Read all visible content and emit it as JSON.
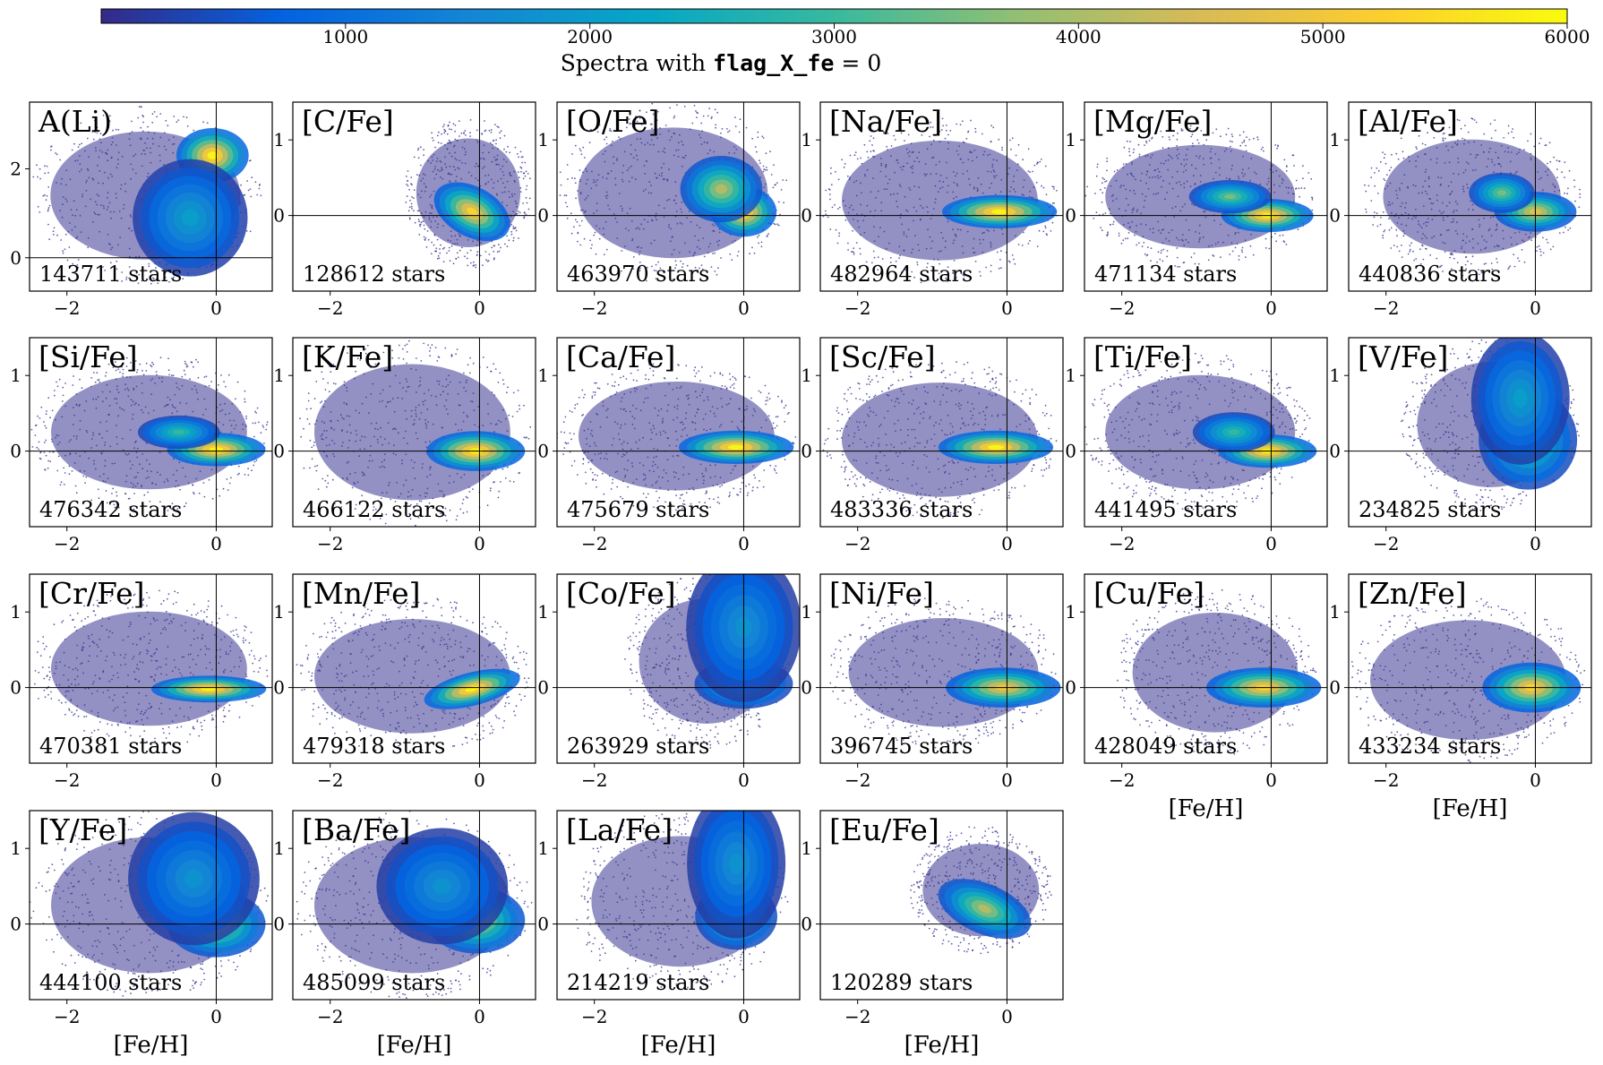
{
  "colors": {
    "colormap": [
      "#352a87",
      "#0363e1",
      "#1485d4",
      "#06a7c6",
      "#38b99e",
      "#92bf73",
      "#d9ba56",
      "#fcce2e",
      "#f9fb0e"
    ],
    "low_density": "#3b3691",
    "axes": "#000000",
    "label_box": "rgba(255,255,255,0.75)"
  },
  "chart_data": {
    "type": "heatmap",
    "colorbar": {
      "ticks": [
        "1000",
        "2000",
        "3000",
        "4000",
        "5000",
        "6000"
      ],
      "tick_values": [
        1000,
        2000,
        3000,
        4000,
        5000,
        6000
      ],
      "range": [
        0,
        6000
      ],
      "title_prefix": "Spectra with ",
      "title_code": "flag_X_fe",
      "title_suffix": " = 0"
    },
    "xlabel": "[Fe/H]",
    "xlim": [
      -2.5,
      0.75
    ],
    "xticks": [
      -2,
      0
    ],
    "xtick_labels": [
      "−2",
      "0"
    ],
    "panels": [
      {
        "label": "A(Li)",
        "count": "143711 stars",
        "ylim": [
          -0.75,
          3.5
        ],
        "yticks": [
          0,
          2
        ],
        "ytick_labels": [
          "0",
          "2"
        ],
        "blobs": [
          {
            "x": -0.05,
            "y": 2.3,
            "sx": 0.22,
            "sy": 0.28,
            "a": 1.0
          },
          {
            "x": -0.35,
            "y": 0.9,
            "sx": 0.35,
            "sy": 0.6,
            "a": 0.35
          }
        ],
        "envelope": {
          "x": [
            -2.5,
            0.6
          ],
          "y": [
            -0.6,
            3.4
          ]
        }
      },
      {
        "label": "[C/Fe]",
        "count": "128612 stars",
        "ylim": [
          -1,
          1.5
        ],
        "yticks": [
          0,
          1
        ],
        "ytick_labels": [
          "0",
          "1"
        ],
        "blobs": [
          {
            "x": -0.1,
            "y": 0.05,
            "sx": 0.25,
            "sy": 0.15,
            "a": 0.9,
            "rot": -0.5
          }
        ],
        "envelope": {
          "x": [
            -1.0,
            0.7
          ],
          "y": [
            -0.7,
            1.3
          ]
        }
      },
      {
        "label": "[O/Fe]",
        "count": "463970 stars",
        "ylim": [
          -1,
          1.5
        ],
        "yticks": [
          0,
          1
        ],
        "ytick_labels": [
          "0",
          "1"
        ],
        "blobs": [
          {
            "x": 0.0,
            "y": 0.05,
            "sx": 0.2,
            "sy": 0.15,
            "a": 1.0
          },
          {
            "x": -0.3,
            "y": 0.35,
            "sx": 0.25,
            "sy": 0.2,
            "a": 0.7
          }
        ],
        "envelope": {
          "x": [
            -2.5,
            0.6
          ],
          "y": [
            -0.9,
            1.5
          ]
        }
      },
      {
        "label": "[Na/Fe]",
        "count": "482964 stars",
        "ylim": [
          -1,
          1.5
        ],
        "yticks": [
          0,
          1
        ],
        "ytick_labels": [
          "0",
          "1"
        ],
        "blobs": [
          {
            "x": -0.1,
            "y": 0.05,
            "sx": 0.35,
            "sy": 0.1,
            "a": 1.0
          }
        ],
        "envelope": {
          "x": [
            -2.5,
            0.7
          ],
          "y": [
            -0.9,
            1.3
          ]
        }
      },
      {
        "label": "[Mg/Fe]",
        "count": "471134 stars",
        "ylim": [
          -1,
          1.5
        ],
        "yticks": [
          0,
          1
        ],
        "ytick_labels": [
          "0",
          "1"
        ],
        "blobs": [
          {
            "x": -0.05,
            "y": 0.0,
            "sx": 0.28,
            "sy": 0.1,
            "a": 1.0
          },
          {
            "x": -0.55,
            "y": 0.25,
            "sx": 0.25,
            "sy": 0.1,
            "a": 0.6
          }
        ],
        "envelope": {
          "x": [
            -2.5,
            0.6
          ],
          "y": [
            -0.7,
            1.2
          ]
        }
      },
      {
        "label": "[Al/Fe]",
        "count": "440836 stars",
        "ylim": [
          -1,
          1.5
        ],
        "yticks": [
          0,
          1
        ],
        "ytick_labels": [
          "0",
          "1"
        ],
        "blobs": [
          {
            "x": 0.0,
            "y": 0.05,
            "sx": 0.25,
            "sy": 0.12,
            "a": 0.8
          },
          {
            "x": -0.45,
            "y": 0.3,
            "sx": 0.2,
            "sy": 0.12,
            "a": 0.6
          }
        ],
        "envelope": {
          "x": [
            -2.3,
            0.6
          ],
          "y": [
            -0.8,
            1.3
          ]
        }
      },
      {
        "label": "[Si/Fe]",
        "count": "476342 stars",
        "ylim": [
          -1,
          1.5
        ],
        "yticks": [
          0,
          1
        ],
        "ytick_labels": [
          "0",
          "1"
        ],
        "blobs": [
          {
            "x": 0.0,
            "y": 0.02,
            "sx": 0.3,
            "sy": 0.1,
            "a": 1.0
          },
          {
            "x": -0.5,
            "y": 0.25,
            "sx": 0.25,
            "sy": 0.1,
            "a": 0.5
          }
        ],
        "envelope": {
          "x": [
            -2.5,
            0.7
          ],
          "y": [
            -0.8,
            1.3
          ]
        }
      },
      {
        "label": "[K/Fe]",
        "count": "466122 stars",
        "ylim": [
          -1,
          1.5
        ],
        "yticks": [
          0,
          1
        ],
        "ytick_labels": [
          "0",
          "1"
        ],
        "blobs": [
          {
            "x": -0.05,
            "y": 0.0,
            "sx": 0.3,
            "sy": 0.12,
            "a": 1.0
          }
        ],
        "envelope": {
          "x": [
            -2.5,
            0.7
          ],
          "y": [
            -1.0,
            1.5
          ]
        }
      },
      {
        "label": "[Ca/Fe]",
        "count": "475679 stars",
        "ylim": [
          -1,
          1.5
        ],
        "yticks": [
          0,
          1
        ],
        "ytick_labels": [
          "0",
          "1"
        ],
        "blobs": [
          {
            "x": -0.1,
            "y": 0.05,
            "sx": 0.35,
            "sy": 0.1,
            "a": 1.0
          }
        ],
        "envelope": {
          "x": [
            -2.5,
            0.7
          ],
          "y": [
            -0.8,
            1.2
          ]
        }
      },
      {
        "label": "[Sc/Fe]",
        "count": "483336 stars",
        "ylim": [
          -1,
          1.5
        ],
        "yticks": [
          0,
          1
        ],
        "ytick_labels": [
          "0",
          "1"
        ],
        "blobs": [
          {
            "x": -0.15,
            "y": 0.05,
            "sx": 0.35,
            "sy": 0.1,
            "a": 1.0
          }
        ],
        "envelope": {
          "x": [
            -2.5,
            0.7
          ],
          "y": [
            -0.9,
            1.2
          ]
        }
      },
      {
        "label": "[Ti/Fe]",
        "count": "441495 stars",
        "ylim": [
          -1,
          1.5
        ],
        "yticks": [
          0,
          1
        ],
        "ytick_labels": [
          "0",
          "1"
        ],
        "blobs": [
          {
            "x": -0.05,
            "y": 0.0,
            "sx": 0.3,
            "sy": 0.1,
            "a": 1.0
          },
          {
            "x": -0.5,
            "y": 0.25,
            "sx": 0.25,
            "sy": 0.12,
            "a": 0.5
          }
        ],
        "envelope": {
          "x": [
            -2.5,
            0.6
          ],
          "y": [
            -0.8,
            1.3
          ]
        }
      },
      {
        "label": "[V/Fe]",
        "count": "234825 stars",
        "ylim": [
          -1,
          1.5
        ],
        "yticks": [
          0,
          1
        ],
        "ytick_labels": [
          "0",
          "1"
        ],
        "blobs": [
          {
            "x": -0.1,
            "y": 0.15,
            "sx": 0.3,
            "sy": 0.3,
            "a": 0.55
          },
          {
            "x": -0.2,
            "y": 0.7,
            "sx": 0.3,
            "sy": 0.4,
            "a": 0.35
          }
        ],
        "envelope": {
          "x": [
            -1.8,
            0.6
          ],
          "y": [
            -0.8,
            1.5
          ]
        }
      },
      {
        "label": "[Cr/Fe]",
        "count": "470381 stars",
        "ylim": [
          -1,
          1.5
        ],
        "yticks": [
          0,
          1
        ],
        "ytick_labels": [
          "0",
          "1"
        ],
        "blobs": [
          {
            "x": -0.1,
            "y": -0.02,
            "sx": 0.35,
            "sy": 0.08,
            "a": 1.0
          }
        ],
        "envelope": {
          "x": [
            -2.5,
            0.7
          ],
          "y": [
            -0.8,
            1.3
          ]
        }
      },
      {
        "label": "[Mn/Fe]",
        "count": "479318 stars",
        "ylim": [
          -1,
          1.5
        ],
        "yticks": [
          0,
          1
        ],
        "ytick_labels": [
          "0",
          "1"
        ],
        "blobs": [
          {
            "x": -0.1,
            "y": -0.02,
            "sx": 0.3,
            "sy": 0.1,
            "a": 1.0,
            "rot": 0.25
          }
        ],
        "envelope": {
          "x": [
            -2.5,
            0.7
          ],
          "y": [
            -0.9,
            1.2
          ]
        }
      },
      {
        "label": "[Co/Fe]",
        "count": "263929 stars",
        "ylim": [
          -1,
          1.5
        ],
        "yticks": [
          0,
          1
        ],
        "ytick_labels": [
          "0",
          "1"
        ],
        "blobs": [
          {
            "x": 0.0,
            "y": 0.05,
            "sx": 0.3,
            "sy": 0.15,
            "a": 0.55
          },
          {
            "x": 0.0,
            "y": 0.8,
            "sx": 0.35,
            "sy": 0.45,
            "a": 0.3
          }
        ],
        "envelope": {
          "x": [
            -1.6,
            0.6
          ],
          "y": [
            -0.8,
            1.5
          ]
        }
      },
      {
        "label": "[Ni/Fe]",
        "count": "396745 stars",
        "ylim": [
          -1,
          1.5
        ],
        "yticks": [
          0,
          1
        ],
        "ytick_labels": [
          "0",
          "1"
        ],
        "blobs": [
          {
            "x": -0.05,
            "y": 0.0,
            "sx": 0.35,
            "sy": 0.12,
            "a": 0.85
          }
        ],
        "envelope": {
          "x": [
            -2.4,
            0.7
          ],
          "y": [
            -0.8,
            1.2
          ]
        }
      },
      {
        "label": "[Cu/Fe]",
        "count": "428049 stars",
        "ylim": [
          -1,
          1.5
        ],
        "yticks": [
          0,
          1
        ],
        "ytick_labels": [
          "0",
          "1"
        ],
        "blobs": [
          {
            "x": -0.1,
            "y": 0.0,
            "sx": 0.35,
            "sy": 0.12,
            "a": 0.9
          }
        ],
        "envelope": {
          "x": [
            -2.1,
            0.6
          ],
          "y": [
            -0.9,
            1.3
          ]
        }
      },
      {
        "label": "[Zn/Fe]",
        "count": "433234 stars",
        "ylim": [
          -1,
          1.5
        ],
        "yticks": [
          0,
          1
        ],
        "ytick_labels": [
          "0",
          "1"
        ],
        "blobs": [
          {
            "x": -0.05,
            "y": 0.0,
            "sx": 0.3,
            "sy": 0.15,
            "a": 0.9
          }
        ],
        "envelope": {
          "x": [
            -2.5,
            0.7
          ],
          "y": [
            -1.0,
            1.2
          ]
        }
      },
      {
        "label": "[Y/Fe]",
        "count": "444100 stars",
        "ylim": [
          -1,
          1.5
        ],
        "yticks": [
          0,
          1
        ],
        "ytick_labels": [
          "0",
          "1"
        ],
        "blobs": [
          {
            "x": 0.0,
            "y": 0.0,
            "sx": 0.3,
            "sy": 0.2,
            "a": 0.75
          },
          {
            "x": -0.3,
            "y": 0.6,
            "sx": 0.4,
            "sy": 0.4,
            "a": 0.3
          }
        ],
        "envelope": {
          "x": [
            -2.5,
            0.7
          ],
          "y": [
            -1.0,
            1.5
          ]
        }
      },
      {
        "label": "[Ba/Fe]",
        "count": "485099 stars",
        "ylim": [
          -1,
          1.5
        ],
        "yticks": [
          0,
          1
        ],
        "ytick_labels": [
          "0",
          "1"
        ],
        "blobs": [
          {
            "x": -0.05,
            "y": 0.05,
            "sx": 0.3,
            "sy": 0.2,
            "a": 0.75
          },
          {
            "x": -0.5,
            "y": 0.5,
            "sx": 0.4,
            "sy": 0.35,
            "a": 0.3
          }
        ],
        "envelope": {
          "x": [
            -2.5,
            0.7
          ],
          "y": [
            -1.0,
            1.5
          ]
        }
      },
      {
        "label": "[La/Fe]",
        "count": "214219 stars",
        "ylim": [
          -1,
          1.5
        ],
        "yticks": [
          0,
          1
        ],
        "ytick_labels": [
          "0",
          "1"
        ],
        "blobs": [
          {
            "x": -0.1,
            "y": 0.1,
            "sx": 0.25,
            "sy": 0.2,
            "a": 0.6
          },
          {
            "x": -0.1,
            "y": 0.8,
            "sx": 0.3,
            "sy": 0.45,
            "a": 0.3
          }
        ],
        "envelope": {
          "x": [
            -2.3,
            0.6
          ],
          "y": [
            -0.9,
            1.5
          ]
        }
      },
      {
        "label": "[Eu/Fe]",
        "count": "120289 stars",
        "ylim": [
          -1,
          1.5
        ],
        "yticks": [
          0,
          1
        ],
        "ytick_labels": [
          "0",
          "1"
        ],
        "blobs": [
          {
            "x": -0.3,
            "y": 0.2,
            "sx": 0.3,
            "sy": 0.15,
            "a": 0.7,
            "rot": -0.4
          }
        ],
        "envelope": {
          "x": [
            -1.3,
            0.6
          ],
          "y": [
            -0.4,
            1.3
          ]
        }
      }
    ]
  }
}
